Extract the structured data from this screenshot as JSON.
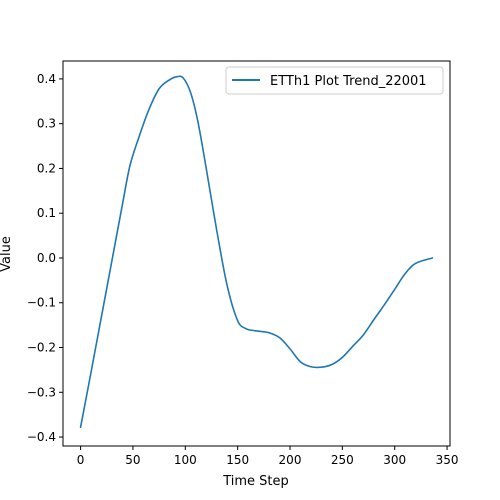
{
  "chart_data": {
    "type": "line",
    "title": "",
    "xlabel": "Time Step",
    "ylabel": "Value",
    "xlim": [
      -16.8,
      352.8
    ],
    "ylim": [
      -0.42,
      0.44
    ],
    "xticks": [
      0,
      50,
      100,
      150,
      200,
      250,
      300,
      350
    ],
    "yticks": [
      -0.4,
      -0.3,
      -0.2,
      -0.1,
      0.0,
      0.1,
      0.2,
      0.3,
      0.4
    ],
    "xtick_labels": [
      "0",
      "50",
      "100",
      "150",
      "200",
      "250",
      "300",
      "350"
    ],
    "ytick_labels": [
      "−0.4",
      "−0.3",
      "−0.2",
      "−0.1",
      "0.0",
      "0.1",
      "0.2",
      "0.3",
      "0.4"
    ],
    "grid": false,
    "legend_position": "top-right",
    "series": [
      {
        "name": "ETTh1 Plot Trend_22001",
        "color": "#1f77b4",
        "x": [
          0,
          10,
          20,
          30,
          40,
          47,
          55,
          65,
          75,
          85,
          92,
          98,
          105,
          112,
          120,
          130,
          140,
          150,
          158,
          165,
          172,
          180,
          190,
          200,
          210,
          220,
          230,
          240,
          250,
          260,
          270,
          280,
          290,
          300,
          310,
          320,
          336
        ],
        "y": [
          -0.378,
          -0.255,
          -0.13,
          -0.005,
          0.12,
          0.205,
          0.265,
          0.33,
          0.378,
          0.398,
          0.405,
          0.402,
          0.37,
          0.305,
          0.2,
          0.062,
          -0.062,
          -0.14,
          -0.158,
          -0.162,
          -0.164,
          -0.167,
          -0.178,
          -0.203,
          -0.232,
          -0.243,
          -0.244,
          -0.238,
          -0.222,
          -0.197,
          -0.172,
          -0.138,
          -0.105,
          -0.07,
          -0.035,
          -0.012,
          0.0
        ]
      }
    ]
  }
}
